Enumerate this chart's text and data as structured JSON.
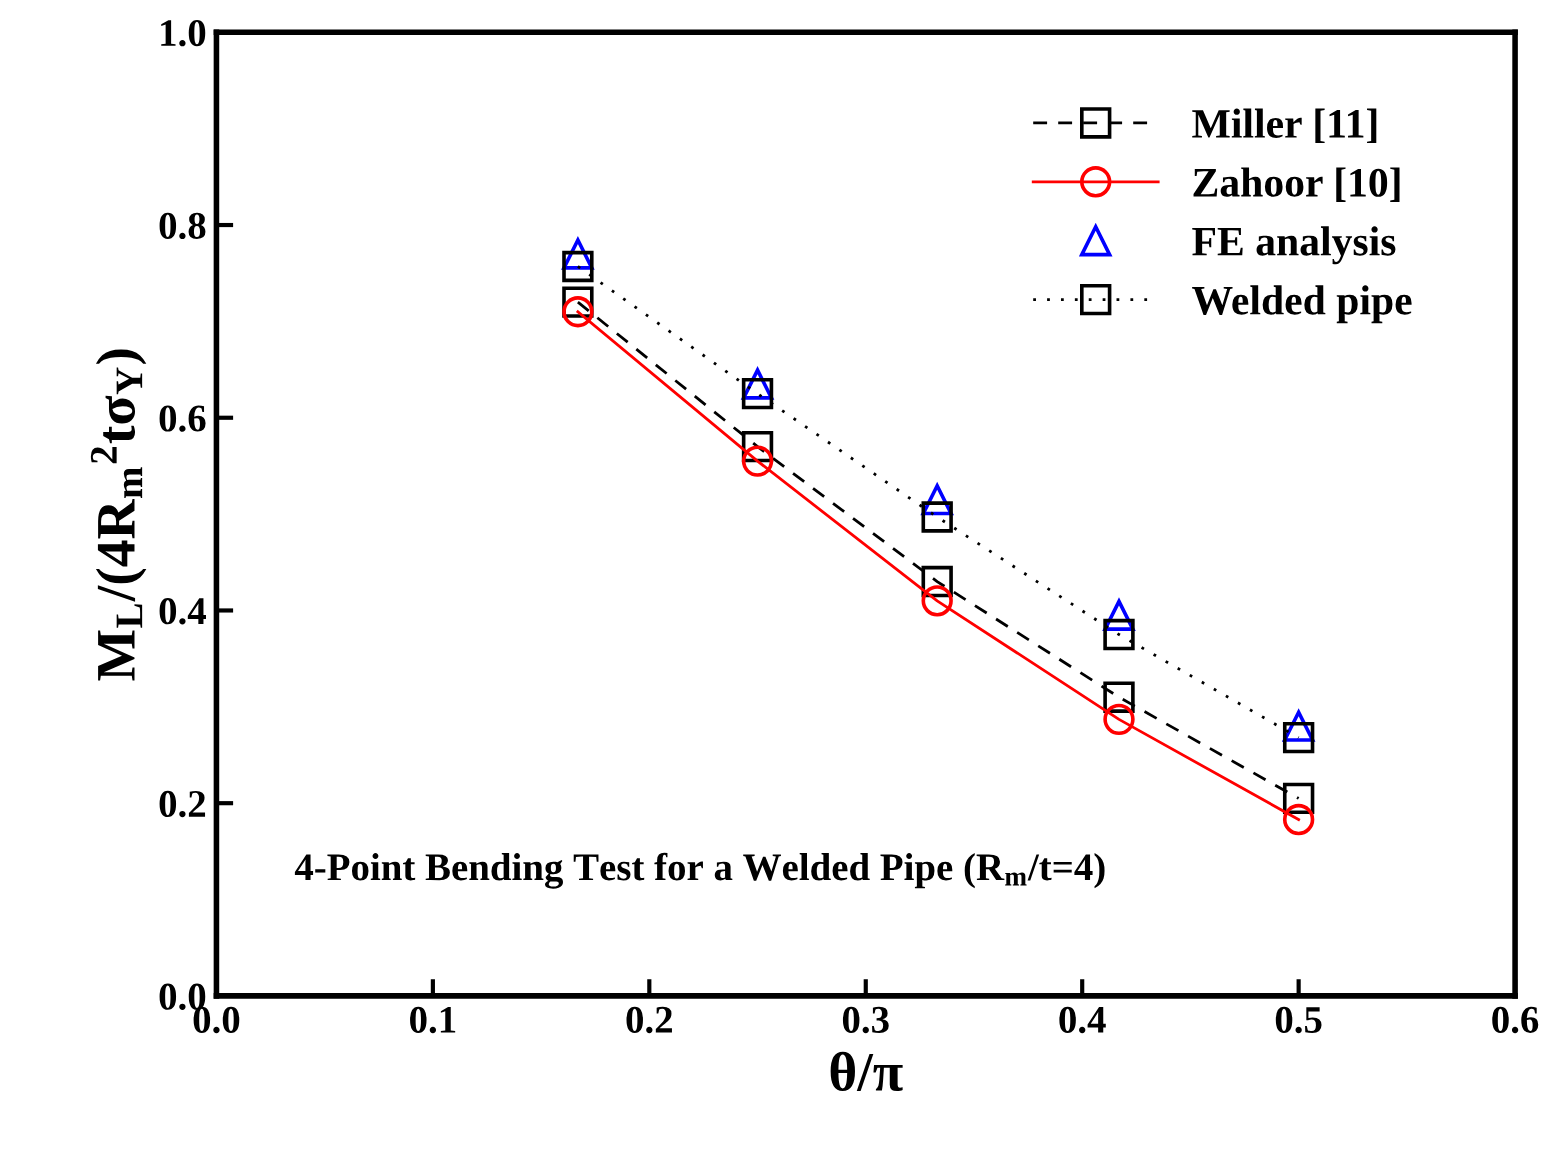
{
  "chart_data": {
    "type": "line",
    "xlabel": "θ/π",
    "ylabel": "M$_{L}$/(4R$_{m}$$^{2}$tσ$_{Y}$)",
    "x": [
      0.167,
      0.25,
      0.333,
      0.417,
      0.5
    ],
    "series": [
      {
        "name": "Miller [11]",
        "color": "#000000",
        "marker": "square",
        "line_style": "dashed",
        "values": [
          0.72,
          0.57,
          0.43,
          0.31,
          0.205
        ]
      },
      {
        "name": "Zahoor [10]",
        "color": "#ff0000",
        "marker": "circle",
        "line_style": "solid",
        "values": [
          0.71,
          0.555,
          0.41,
          0.287,
          0.183
        ]
      },
      {
        "name": "FE analysis",
        "type": "scatter",
        "color": "#0000ff",
        "marker": "triangle",
        "values": [
          0.77,
          0.635,
          0.515,
          0.395,
          0.28
        ]
      },
      {
        "name": "Welded pipe",
        "color": "#000000",
        "marker": "square",
        "line_style": "dotted",
        "values": [
          0.757,
          0.625,
          0.497,
          0.375,
          0.268
        ]
      }
    ],
    "xlim": [
      0.0,
      0.6
    ],
    "ylim": [
      0.0,
      1.0
    ],
    "xticks": [
      {
        "value": 0,
        "label": "0.0"
      },
      0.1,
      0.2,
      0.3,
      0.4,
      0.5,
      0.6
    ],
    "yticks": [
      {
        "value": 0,
        "label": "0.0"
      },
      0.2,
      0.4,
      0.6,
      0.8,
      {
        "value": 1,
        "label": "1.0"
      }
    ],
    "annotations": [
      "4-Point Bending Test for a Welded Pipe (R$_{m}$/t=4)"
    ],
    "legend": "top right",
    "grid": false
  }
}
